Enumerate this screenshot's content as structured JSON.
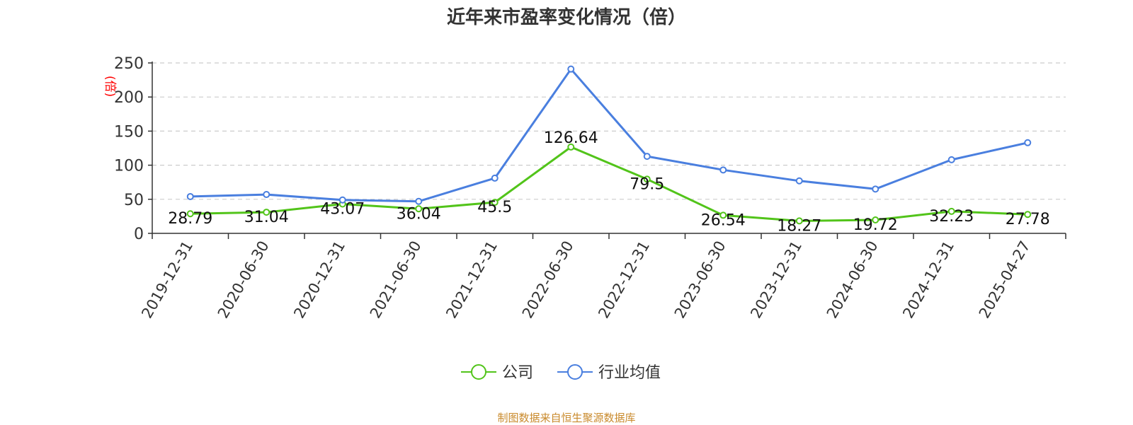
{
  "chart_data": {
    "type": "line",
    "title": "近年来市盈率变化情况（倍）",
    "ylabel": "(倍)",
    "xlabel": "",
    "ylim": [
      0,
      250
    ],
    "yticks": [
      0,
      50,
      100,
      150,
      200,
      250
    ],
    "grid": true,
    "legend_position": "bottom-center",
    "categories": [
      "2019-12-31",
      "2020-06-30",
      "2020-12-31",
      "2021-06-30",
      "2021-12-31",
      "2022-06-30",
      "2022-12-31",
      "2023-06-30",
      "2023-12-31",
      "2024-06-30",
      "2024-12-31",
      "2025-04-27"
    ],
    "series": [
      {
        "name": "公司",
        "color": "#52c41a",
        "show_labels": true,
        "values": [
          28.79,
          31.04,
          43.07,
          36.04,
          45.5,
          126.64,
          79.5,
          26.54,
          18.27,
          19.72,
          32.23,
          27.78
        ]
      },
      {
        "name": "行业均值",
        "color": "#4a7fdf",
        "show_labels": false,
        "values": [
          54,
          57,
          49,
          47,
          81,
          241,
          113,
          93,
          77,
          65,
          108,
          133
        ]
      }
    ]
  },
  "source_note": "制图数据来自恒生聚源数据库",
  "colors": {
    "axis": "#333333",
    "grid": "#cccccc",
    "ylabel": "#ff0000",
    "source": "#c98a2c"
  }
}
